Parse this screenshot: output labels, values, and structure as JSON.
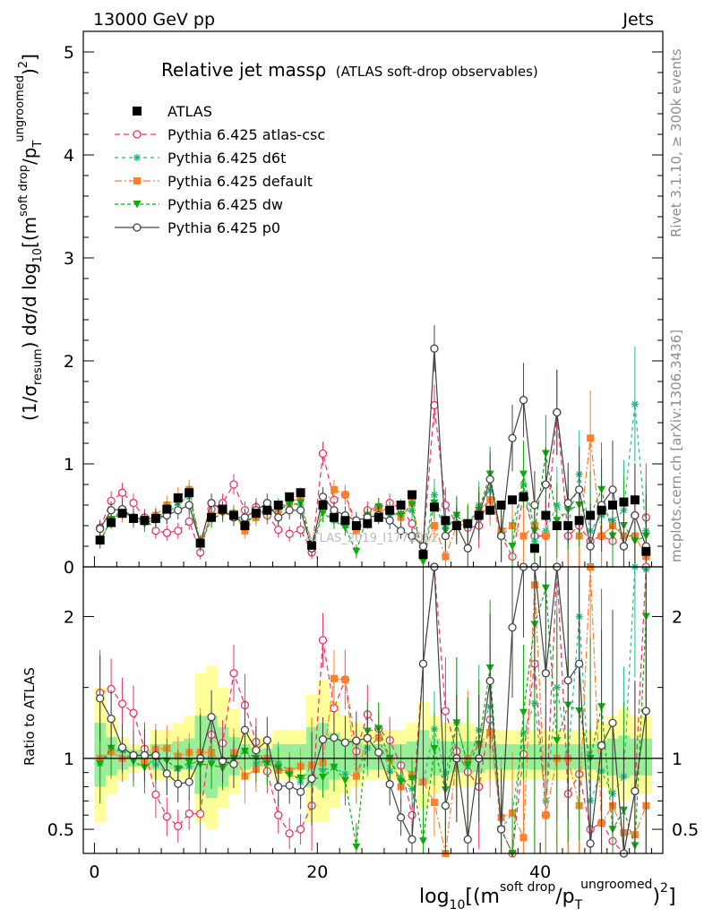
{
  "header": {
    "left": "13000 GeV pp",
    "right": "Jets"
  },
  "plot": {
    "title": "Relative jet massρ",
    "title_sub": "(ATLAS soft-drop observables)",
    "watermark": "ATLAS_2019_I1772062"
  },
  "side_labels": {
    "rivet": "Rivet 3.1.10, ≥ 300k events",
    "mcplots": "mcplots.cern.ch [arXiv:1306.3436]"
  },
  "axes": {
    "ylabel_main": "(1/σresum) dσ/d log10[(m soft drop/pT ungroomed)2]",
    "ylabel_ratio": "Ratio to ATLAS",
    "xlabel": "log10[(m soft drop/pT ungroomed)2]"
  },
  "colors": {
    "ATLAS": "#000000",
    "atlas-csc": "#ee3366",
    "d6t": "#22bb88",
    "default": "#ff7f2a",
    "dw": "#11aa11",
    "p0": "#444444",
    "band_yellow": "#ffff99",
    "band_green": "#99ee99"
  },
  "chart_data": {
    "type": "scatter",
    "x_range": [
      -1,
      51
    ],
    "ylim_main": [
      0,
      5.2
    ],
    "ylim_ratio": [
      0.33,
      2.35
    ],
    "x_ticks": [
      0,
      20,
      40
    ],
    "y_ticks_main": [
      0,
      1,
      2,
      3,
      4,
      5
    ],
    "y_ticks_ratio": [
      0.5,
      1,
      2
    ],
    "x": [
      0.5,
      1.5,
      2.5,
      3.5,
      4.5,
      5.5,
      6.5,
      7.5,
      8.5,
      9.5,
      10.5,
      11.5,
      12.5,
      13.5,
      14.5,
      15.5,
      16.5,
      17.5,
      18.5,
      19.5,
      20.5,
      21.5,
      22.5,
      23.5,
      24.5,
      25.5,
      26.5,
      27.5,
      28.5,
      29.5,
      30.5,
      31.5,
      32.5,
      33.5,
      34.5,
      35.5,
      36.5,
      37.5,
      38.5,
      39.5,
      40.5,
      41.5,
      42.5,
      43.5,
      44.5,
      45.5,
      46.5,
      47.5,
      48.5,
      49.5
    ],
    "series": [
      {
        "name": "ATLAS",
        "key": "ATLAS",
        "style": "data",
        "values": [
          0.26,
          0.43,
          0.52,
          0.47,
          0.45,
          0.47,
          0.56,
          0.67,
          0.72,
          0.23,
          0.48,
          0.56,
          0.5,
          0.4,
          0.52,
          0.55,
          0.6,
          0.68,
          0.72,
          0.21,
          0.6,
          0.48,
          0.45,
          0.4,
          0.42,
          0.48,
          0.55,
          0.6,
          0.7,
          0.12,
          0.58,
          0.45,
          0.4,
          0.42,
          0.5,
          0.55,
          0.6,
          0.65,
          0.68,
          0.18,
          0.5,
          0.4,
          0.4,
          0.45,
          0.5,
          0.55,
          0.6,
          0.63,
          0.65,
          0.15
        ]
      },
      {
        "name": "Pythia 6.425 atlas-csc",
        "key": "atlas-csc",
        "style": "open-circle",
        "dash": "6,4",
        "values": [
          0.38,
          0.64,
          0.72,
          0.62,
          0.48,
          0.35,
          0.33,
          0.35,
          0.44,
          0.14,
          0.56,
          0.62,
          0.8,
          0.55,
          0.58,
          0.5,
          0.36,
          0.32,
          0.36,
          0.14,
          1.1,
          0.65,
          0.7,
          0.42,
          0.55,
          0.58,
          0.62,
          0.57,
          0.42,
          0.2,
          1.57,
          0.6,
          0.42,
          0.38,
          0.4,
          0.7,
          0.3,
          0.1,
          0.7,
          0.3,
          0.3,
          1.5,
          0.3,
          0.4,
          0.25,
          0.3,
          0.25,
          0.2,
          0.5,
          0.48
        ]
      },
      {
        "name": "Pythia 6.425 d6t",
        "key": "d6t",
        "style": "star",
        "dash": "4,4",
        "values": [
          0.25,
          0.45,
          0.55,
          0.48,
          0.45,
          0.45,
          0.5,
          0.62,
          0.68,
          0.23,
          0.48,
          0.55,
          0.48,
          0.42,
          0.5,
          0.55,
          0.58,
          0.62,
          0.6,
          0.2,
          0.55,
          0.45,
          0.4,
          0.35,
          0.45,
          0.55,
          0.5,
          0.52,
          0.55,
          0.1,
          0.7,
          0.4,
          0.5,
          0.4,
          0.6,
          0.75,
          0.3,
          0.4,
          0.8,
          0.25,
          0.35,
          0.6,
          0.4,
          0.9,
          0.35,
          0.5,
          0.45,
          0.55,
          1.58,
          0.35
        ]
      },
      {
        "name": "Pythia 6.425 default",
        "key": "default",
        "style": "square",
        "dash": "8,3,2,3",
        "values": [
          0.26,
          0.45,
          0.52,
          0.48,
          0.44,
          0.5,
          0.6,
          0.68,
          0.75,
          0.24,
          0.5,
          0.54,
          0.52,
          0.35,
          0.48,
          0.55,
          0.55,
          0.62,
          0.68,
          0.2,
          0.58,
          0.75,
          0.7,
          0.35,
          0.48,
          0.55,
          0.55,
          0.48,
          0.62,
          0.1,
          0.4,
          0.1,
          0.4,
          0.42,
          0.55,
          0.65,
          0.35,
          0.4,
          0.3,
          0.4,
          0.3,
          0.4,
          0.4,
          0.3,
          1.25,
          0.3,
          0.4,
          0.3,
          0.3,
          0.1
        ]
      },
      {
        "name": "Pythia 6.425 dw",
        "key": "dw",
        "style": "down-triangle",
        "dash": "4,3",
        "values": [
          0.25,
          0.46,
          0.55,
          0.46,
          0.42,
          0.47,
          0.55,
          0.62,
          0.7,
          0.22,
          0.46,
          0.52,
          0.5,
          0.42,
          0.52,
          0.53,
          0.56,
          0.6,
          0.62,
          0.18,
          0.52,
          0.45,
          0.38,
          0.15,
          0.5,
          0.58,
          0.55,
          0.5,
          0.6,
          0.05,
          0.62,
          0.35,
          0.5,
          0.4,
          0.55,
          0.9,
          0.3,
          0.2,
          0.9,
          0.35,
          1.1,
          0.45,
          0.55,
          0.6,
          0.5,
          0.75,
          0.3,
          0.4,
          0.25,
          0.3
        ]
      },
      {
        "name": "Pythia 6.425 p0",
        "key": "p0",
        "style": "open-circle",
        "dash": "",
        "values": [
          0.37,
          0.55,
          0.56,
          0.48,
          0.46,
          0.48,
          0.5,
          0.55,
          0.6,
          0.23,
          0.62,
          0.55,
          0.48,
          0.48,
          0.55,
          0.62,
          0.48,
          0.55,
          0.55,
          0.18,
          0.68,
          0.55,
          0.5,
          0.45,
          0.48,
          0.5,
          0.45,
          0.35,
          0.3,
          0.2,
          2.12,
          0.3,
          0.4,
          0.18,
          0.5,
          0.85,
          0.3,
          1.25,
          1.62,
          0.6,
          0.8,
          1.5,
          0.62,
          0.75,
          0.2,
          0.6,
          0.75,
          0.2,
          0.5,
          0.2
        ]
      }
    ],
    "band_yellow": [
      [
        0.55,
        1.5
      ],
      [
        0.75,
        1.3
      ],
      [
        0.85,
        1.15
      ],
      [
        0.9,
        1.1
      ],
      [
        0.92,
        1.1
      ],
      [
        0.85,
        1.2
      ],
      [
        0.85,
        1.2
      ],
      [
        0.85,
        1.25
      ],
      [
        0.85,
        1.3
      ],
      [
        0.55,
        1.6
      ],
      [
        0.5,
        1.65
      ],
      [
        0.65,
        1.5
      ],
      [
        0.75,
        1.35
      ],
      [
        0.85,
        1.2
      ],
      [
        0.9,
        1.15
      ],
      [
        0.9,
        1.15
      ],
      [
        0.85,
        1.2
      ],
      [
        0.85,
        1.2
      ],
      [
        0.85,
        1.2
      ],
      [
        0.55,
        1.45
      ],
      [
        0.55,
        1.55
      ],
      [
        0.65,
        1.4
      ],
      [
        0.75,
        1.3
      ],
      [
        0.8,
        1.25
      ],
      [
        0.85,
        1.2
      ],
      [
        0.85,
        1.2
      ],
      [
        0.85,
        1.2
      ],
      [
        0.85,
        1.2
      ],
      [
        0.8,
        1.25
      ],
      [
        0.65,
        1.4
      ],
      [
        0.75,
        1.3
      ],
      [
        0.8,
        1.25
      ],
      [
        0.8,
        1.25
      ],
      [
        0.8,
        1.25
      ],
      [
        0.82,
        1.22
      ],
      [
        0.85,
        1.2
      ],
      [
        0.85,
        1.2
      ],
      [
        0.85,
        1.2
      ],
      [
        0.85,
        1.2
      ],
      [
        0.85,
        1.2
      ],
      [
        0.85,
        1.2
      ],
      [
        0.85,
        1.2
      ],
      [
        0.85,
        1.2
      ],
      [
        0.85,
        1.2
      ],
      [
        0.85,
        1.2
      ],
      [
        0.8,
        1.25
      ],
      [
        0.75,
        1.3
      ],
      [
        0.7,
        1.35
      ],
      [
        0.75,
        1.3
      ],
      [
        0.75,
        1.3
      ]
    ],
    "band_green": [
      [
        0.8,
        1.25
      ],
      [
        0.88,
        1.15
      ],
      [
        0.92,
        1.08
      ],
      [
        0.94,
        1.06
      ],
      [
        0.95,
        1.06
      ],
      [
        0.92,
        1.1
      ],
      [
        0.92,
        1.1
      ],
      [
        0.92,
        1.12
      ],
      [
        0.92,
        1.14
      ],
      [
        0.75,
        1.3
      ],
      [
        0.72,
        1.3
      ],
      [
        0.8,
        1.22
      ],
      [
        0.88,
        1.15
      ],
      [
        0.92,
        1.1
      ],
      [
        0.94,
        1.07
      ],
      [
        0.94,
        1.07
      ],
      [
        0.92,
        1.1
      ],
      [
        0.92,
        1.1
      ],
      [
        0.92,
        1.1
      ],
      [
        0.8,
        1.22
      ],
      [
        0.78,
        1.25
      ],
      [
        0.85,
        1.18
      ],
      [
        0.88,
        1.14
      ],
      [
        0.9,
        1.12
      ],
      [
        0.92,
        1.1
      ],
      [
        0.92,
        1.1
      ],
      [
        0.92,
        1.1
      ],
      [
        0.92,
        1.1
      ],
      [
        0.9,
        1.12
      ],
      [
        0.82,
        1.2
      ],
      [
        0.88,
        1.14
      ],
      [
        0.9,
        1.12
      ],
      [
        0.9,
        1.12
      ],
      [
        0.9,
        1.12
      ],
      [
        0.9,
        1.12
      ],
      [
        0.92,
        1.1
      ],
      [
        0.92,
        1.1
      ],
      [
        0.92,
        1.1
      ],
      [
        0.92,
        1.1
      ],
      [
        0.92,
        1.1
      ],
      [
        0.92,
        1.1
      ],
      [
        0.92,
        1.1
      ],
      [
        0.92,
        1.1
      ],
      [
        0.92,
        1.1
      ],
      [
        0.92,
        1.1
      ],
      [
        0.9,
        1.12
      ],
      [
        0.88,
        1.14
      ],
      [
        0.86,
        1.16
      ],
      [
        0.88,
        1.14
      ],
      [
        0.88,
        1.14
      ]
    ]
  }
}
